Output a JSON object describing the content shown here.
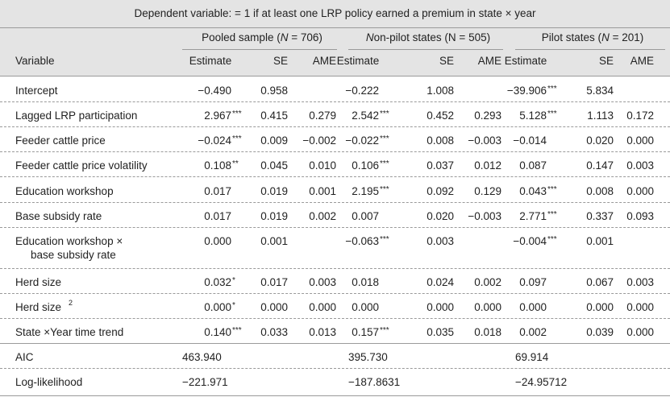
{
  "title": "Dependent variable:  = 1 if at least one LRP policy earned a premium in state × year",
  "groups": [
    {
      "label": "Pooled sample (N = 706)"
    },
    {
      "label": "Non-pilot states (N = 505)"
    },
    {
      "label": "Pilot states (N = 201)"
    }
  ],
  "subheaders": {
    "variable": "Variable",
    "estimate": "Estimate",
    "se": "SE",
    "ame": "AME"
  },
  "rows": [
    {
      "label": "Intercept",
      "cells": [
        [
          "−0.490",
          "",
          "0.958",
          ""
        ],
        [
          "−0.222",
          "",
          "1.008",
          ""
        ],
        [
          "−39.906",
          "***",
          "5.834",
          ""
        ]
      ]
    },
    {
      "label": "Lagged LRP participation",
      "cells": [
        [
          "2.967",
          "***",
          "0.415",
          "0.279"
        ],
        [
          "2.542",
          "***",
          "0.452",
          "0.293"
        ],
        [
          "5.128",
          "***",
          "1.113",
          "0.172"
        ]
      ]
    },
    {
      "label": "Feeder cattle price",
      "cells": [
        [
          "−0.024",
          "***",
          "0.009",
          "−0.002"
        ],
        [
          "−0.022",
          "***",
          "0.008",
          "−0.003"
        ],
        [
          "−0.014",
          "",
          "0.020",
          "0.000"
        ]
      ]
    },
    {
      "label": "Feeder cattle price volatility",
      "cells": [
        [
          "0.108",
          "**",
          "0.045",
          "0.010"
        ],
        [
          "0.106",
          "***",
          "0.037",
          "0.012"
        ],
        [
          "0.087",
          "",
          "0.147",
          "0.003"
        ]
      ]
    },
    {
      "label": "Education workshop",
      "cells": [
        [
          "0.017",
          "",
          "0.019",
          "0.001"
        ],
        [
          "2.195",
          "***",
          "0.092",
          "0.129"
        ],
        [
          "0.043",
          "***",
          "0.008",
          "0.000"
        ]
      ]
    },
    {
      "label": "Base subsidy rate",
      "cells": [
        [
          "0.017",
          "",
          "0.019",
          "0.002"
        ],
        [
          "0.007",
          "",
          "0.020",
          "−0.003"
        ],
        [
          "2.771",
          "***",
          "0.337",
          "0.093"
        ]
      ]
    },
    {
      "label": "Education workshop ×",
      "label2": "base subsidy rate",
      "cells": [
        [
          "0.000",
          "",
          "0.001",
          ""
        ],
        [
          "−0.063",
          "***",
          "0.003",
          ""
        ],
        [
          "−0.004",
          "***",
          "0.001",
          ""
        ]
      ]
    },
    {
      "label": "Herd size",
      "cells": [
        [
          "0.032",
          "*",
          "0.017",
          "0.003"
        ],
        [
          "0.018",
          "",
          "0.024",
          "0.002"
        ],
        [
          "0.097",
          "",
          "0.067",
          "0.003"
        ]
      ]
    },
    {
      "label": "Herd size",
      "sup": "2",
      "cells": [
        [
          "0.000",
          "*",
          "0.000",
          "0.000"
        ],
        [
          "0.000",
          "",
          "0.000",
          "0.000"
        ],
        [
          "0.000",
          "",
          "0.000",
          "0.000"
        ]
      ]
    },
    {
      "label": "State ×Year time trend",
      "cells": [
        [
          "0.140",
          "***",
          "0.033",
          "0.013"
        ],
        [
          "0.157",
          "***",
          "0.035",
          "0.018"
        ],
        [
          "0.002",
          "",
          "0.039",
          "0.000"
        ]
      ]
    }
  ],
  "stats": [
    {
      "label": "AIC",
      "values": [
        "463.940",
        "395.730",
        "69.914"
      ]
    },
    {
      "label": "Log-likelihood",
      "values": [
        "−221.971",
        "−187.8631",
        "−24.95712"
      ]
    }
  ]
}
